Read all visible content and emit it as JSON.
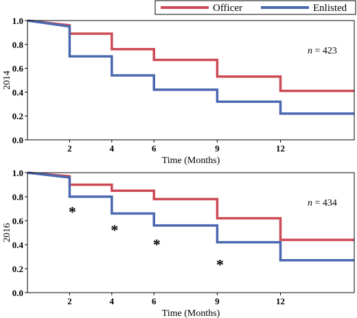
{
  "legend": {
    "placement": "top-right",
    "entries": [
      {
        "label": "Officer",
        "color": "#cd4a55"
      },
      {
        "label": "Enlisted",
        "color": "#4a68b0"
      }
    ]
  },
  "chart_data": [
    {
      "type": "line",
      "step": true,
      "panel_label": "2014",
      "xlabel": "Time (Months)",
      "ylabel": "",
      "xlim": [
        0,
        15.5
      ],
      "ylim": [
        0,
        1.0
      ],
      "xticks": [
        2,
        4,
        6,
        9,
        12
      ],
      "yticks": [
        0.0,
        0.2,
        0.4,
        0.6,
        0.8,
        1.0
      ],
      "yticklabels": [
        "0.0",
        "0.2",
        "0.4",
        "0.6",
        "0.8",
        "1.0"
      ],
      "annotation": {
        "n_label": "n",
        "n_text": " = 423"
      },
      "significance_markers": [],
      "series": [
        {
          "name": "Officer",
          "color": "#cd4a55",
          "x": [
            0,
            2,
            4,
            6,
            9,
            12,
            15.5
          ],
          "y": [
            1.0,
            0.96,
            0.89,
            0.76,
            0.67,
            0.53,
            0.41
          ]
        },
        {
          "name": "Enlisted",
          "color": "#4a68b0",
          "x": [
            0,
            2,
            4,
            6,
            9,
            12,
            15.5
          ],
          "y": [
            1.0,
            0.95,
            0.7,
            0.54,
            0.42,
            0.32,
            0.22
          ]
        }
      ]
    },
    {
      "type": "line",
      "step": true,
      "panel_label": "2016",
      "xlabel": "Time (Months)",
      "ylabel": "",
      "xlim": [
        0,
        15.5
      ],
      "ylim": [
        0,
        1.0
      ],
      "xticks": [
        2,
        4,
        6,
        9,
        12
      ],
      "yticks": [
        0.0,
        0.2,
        0.4,
        0.6,
        0.8,
        1.0
      ],
      "yticklabels": [
        "0.0",
        "0.2",
        "0.4",
        "0.6",
        "0.8",
        "1.0"
      ],
      "annotation": {
        "n_label": "n",
        "n_text": " = 434"
      },
      "significance_markers": [
        {
          "x": 2,
          "y": 0.7,
          "text": "*"
        },
        {
          "x": 4,
          "y": 0.55,
          "text": "*"
        },
        {
          "x": 6,
          "y": 0.43,
          "text": "*"
        },
        {
          "x": 9,
          "y": 0.26,
          "text": "*"
        }
      ],
      "series": [
        {
          "name": "Officer",
          "color": "#cd4a55",
          "x": [
            0,
            2,
            4,
            6,
            9,
            12,
            15.5
          ],
          "y": [
            1.0,
            0.97,
            0.9,
            0.85,
            0.78,
            0.62,
            0.44
          ]
        },
        {
          "name": "Enlisted",
          "color": "#4a68b0",
          "x": [
            0,
            2,
            4,
            6,
            9,
            12,
            15.5
          ],
          "y": [
            1.0,
            0.96,
            0.8,
            0.66,
            0.56,
            0.42,
            0.27
          ]
        }
      ]
    }
  ]
}
